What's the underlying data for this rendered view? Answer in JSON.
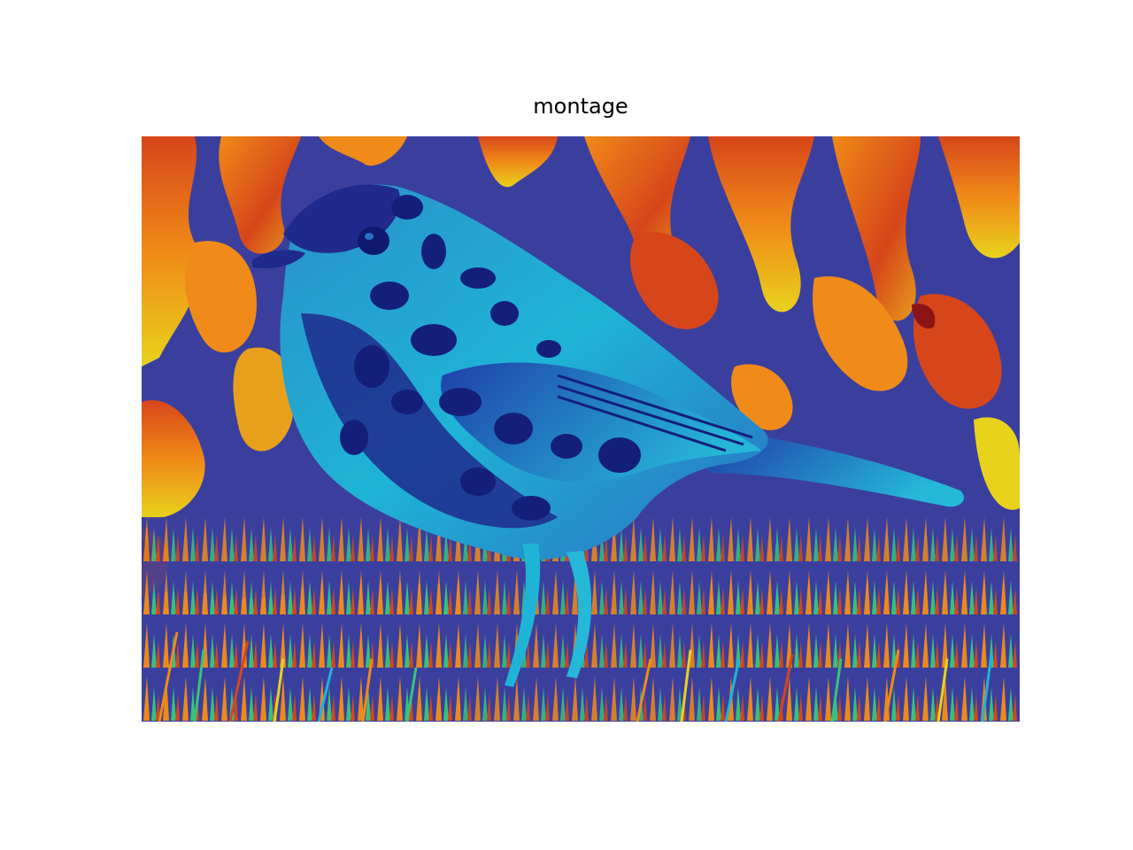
{
  "figure": {
    "title": "montage"
  },
  "image": {
    "subject": "bird",
    "colormap": "jet",
    "palette": {
      "background": "#3a3f9e",
      "deep_blue": "#1f2a8c",
      "navy": "#141f7a",
      "cyan": "#1fb4d6",
      "teal": "#2a9bc2",
      "green": "#39c27a",
      "yellow": "#e8d21c",
      "orange": "#f08a18",
      "red": "#d6461a",
      "dark_red": "#8c1414"
    }
  }
}
